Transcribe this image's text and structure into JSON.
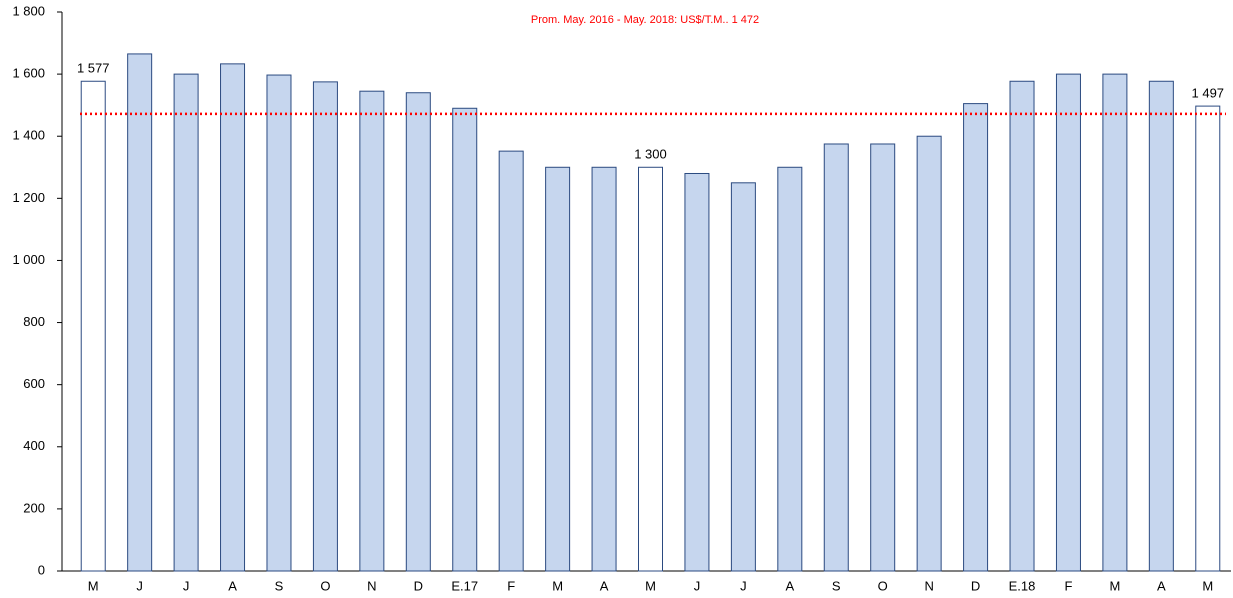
{
  "chart_data": {
    "type": "bar",
    "annotation": "Prom. May. 2016 - May. 2018: US$/T.M.. 1 472",
    "average": 1472,
    "average_color": "#ff0000",
    "categories": [
      "M",
      "J",
      "J",
      "A",
      "S",
      "O",
      "N",
      "D",
      "E.17",
      "F",
      "M",
      "A",
      "M",
      "J",
      "J",
      "A",
      "S",
      "O",
      "N",
      "D",
      "E.18",
      "F",
      "M",
      "A",
      "M"
    ],
    "values": [
      1577,
      1665,
      1600,
      1633,
      1597,
      1575,
      1545,
      1540,
      1490,
      1352,
      1300,
      1300,
      1300,
      1280,
      1250,
      1300,
      1375,
      1375,
      1400,
      1505,
      1577,
      1600,
      1600,
      1577,
      1497
    ],
    "value_labels": [
      "1 577",
      null,
      null,
      null,
      null,
      null,
      null,
      null,
      null,
      null,
      null,
      null,
      "1 300",
      null,
      null,
      null,
      null,
      null,
      null,
      null,
      null,
      null,
      null,
      null,
      "1 497"
    ],
    "bar_colors": [
      "#ffffff",
      "#c6d6ee",
      "#c6d6ee",
      "#c6d6ee",
      "#c6d6ee",
      "#c6d6ee",
      "#c6d6ee",
      "#c6d6ee",
      "#c6d6ee",
      "#c6d6ee",
      "#c6d6ee",
      "#c6d6ee",
      "#ffffff",
      "#c6d6ee",
      "#c6d6ee",
      "#c6d6ee",
      "#c6d6ee",
      "#c6d6ee",
      "#c6d6ee",
      "#c6d6ee",
      "#c6d6ee",
      "#c6d6ee",
      "#c6d6ee",
      "#c6d6ee",
      "#ffffff"
    ],
    "edge_color": "#2b4a80",
    "ylim": [
      0,
      1800
    ],
    "yticks": [
      0,
      200,
      400,
      600,
      800,
      {
        "value": 1000,
        "label": "1 000"
      },
      {
        "value": 1200,
        "label": "1 200"
      },
      {
        "value": 1400,
        "label": "1 400"
      },
      {
        "value": 1600,
        "label": "1 600"
      },
      {
        "value": 1800,
        "label": "1 800"
      }
    ],
    "grid": false
  }
}
